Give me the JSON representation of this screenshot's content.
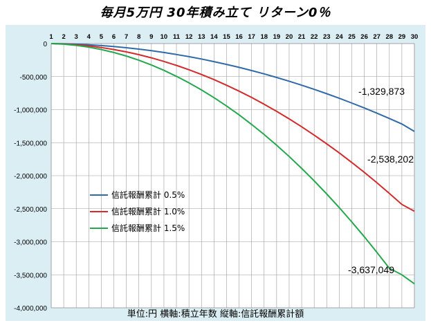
{
  "chart_data": {
    "type": "line",
    "title": "毎月5万円 30年積み立て リターン0％",
    "footer": "単位:円 横軸:積立年数 縦軸:信託報酬累計額",
    "x": [
      1,
      2,
      3,
      4,
      5,
      6,
      7,
      8,
      9,
      10,
      11,
      12,
      13,
      14,
      15,
      16,
      17,
      18,
      19,
      20,
      21,
      22,
      23,
      24,
      25,
      26,
      27,
      28,
      29,
      30
    ],
    "ylim": [
      -4000000,
      0
    ],
    "yticks": [
      0,
      -500000,
      -1000000,
      -1500000,
      -2000000,
      -2500000,
      -3000000,
      -3500000,
      -4000000
    ],
    "ytick_labels": [
      "0",
      "-500,000",
      "-1,000,000",
      "-1,500,000",
      "-2,000,000",
      "-2,500,000",
      "-3,000,000",
      "-3,500,000",
      "-4,000,000"
    ],
    "grid": true,
    "legend_position": "left",
    "series": [
      {
        "name": "信託報酬累計 0.5%",
        "color": "#2e6aa8",
        "values": [
          0,
          -3000,
          -9000,
          -18000,
          -30000,
          -45000,
          -63000,
          -84000,
          -108000,
          -135000,
          -165000,
          -198000,
          -234000,
          -273000,
          -315000,
          -360000,
          -408000,
          -459000,
          -513000,
          -570000,
          -630000,
          -693000,
          -759000,
          -828000,
          -900000,
          -975000,
          -1053000,
          -1134000,
          -1218000,
          -1329873
        ],
        "end_label": "-1,329,873"
      },
      {
        "name": "信託報酬累計 1.0%",
        "color": "#d42a2a",
        "values": [
          0,
          -6000,
          -18000,
          -36000,
          -60000,
          -90000,
          -126000,
          -168000,
          -216000,
          -270000,
          -330000,
          -396000,
          -468000,
          -546000,
          -630000,
          -720000,
          -816000,
          -918000,
          -1026000,
          -1140000,
          -1260000,
          -1386000,
          -1518000,
          -1656000,
          -1800000,
          -1950000,
          -2106000,
          -2268000,
          -2436000,
          -2538202
        ],
        "end_label": "-2,538,202"
      },
      {
        "name": "信託報酬累計 1.5%",
        "color": "#23a84c",
        "values": [
          0,
          -9000,
          -27000,
          -54000,
          -90000,
          -135000,
          -189000,
          -252000,
          -324000,
          -405000,
          -495000,
          -594000,
          -702000,
          -819000,
          -945000,
          -1080000,
          -1224000,
          -1377000,
          -1539000,
          -1710000,
          -1890000,
          -2079000,
          -2277000,
          -2484000,
          -2700000,
          -2925000,
          -3159000,
          -3402000,
          -3500000,
          -3637049
        ],
        "end_label": "-3,637,049"
      }
    ]
  }
}
